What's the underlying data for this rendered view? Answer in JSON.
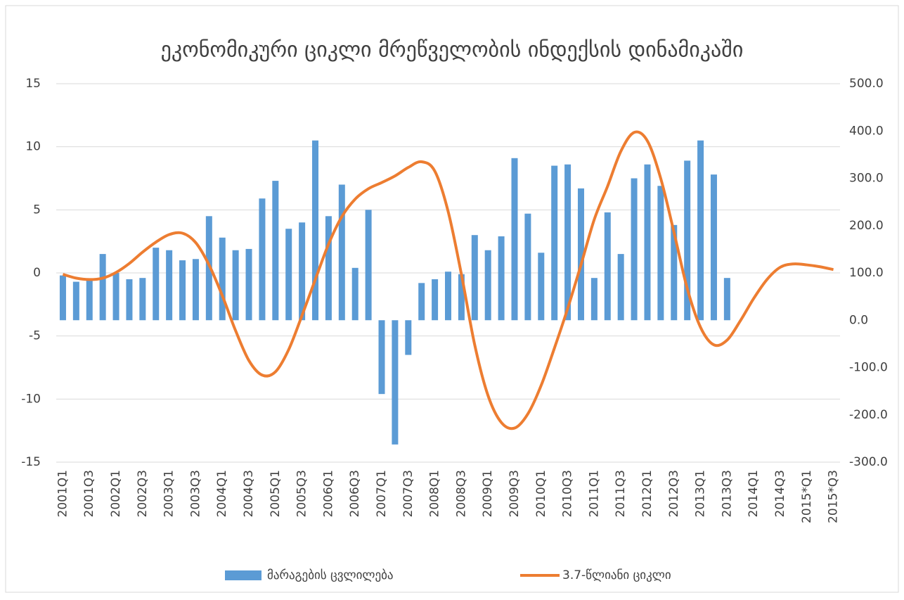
{
  "chart_data": {
    "type": "bar-line",
    "title": "ეკონომიკური ციკლი მრეწველობის ინდექსის დინამიკაში",
    "categories": [
      "2001Q1",
      null,
      "2001Q3",
      null,
      "2002Q1",
      null,
      "2002Q3",
      null,
      "2003Q1",
      null,
      "2003Q3",
      null,
      "2004Q1",
      null,
      "2004Q3",
      null,
      "2005Q1",
      null,
      "2005Q3",
      null,
      "2006Q1",
      null,
      "2006Q3",
      null,
      "2007Q1",
      null,
      "2007Q3",
      null,
      "2008Q1",
      null,
      "2008Q3",
      null,
      "2009Q1",
      null,
      "2009Q3",
      null,
      "2010Q1",
      null,
      "2010Q3",
      null,
      "2011Q1",
      null,
      "2011Q3",
      null,
      "2012Q1",
      null,
      "2012Q3",
      null,
      "2013Q1",
      null,
      "2013Q3",
      null,
      "2014Q1",
      null,
      "2014Q3",
      null,
      "2015*Q1",
      null,
      "2015*Q3"
    ],
    "series": [
      {
        "name": "მარაგების ცვლილება",
        "type": "bar",
        "color": "#5b9bd5",
        "values": [
          -0.2,
          -0.7,
          -0.6,
          1.5,
          0,
          -0.5,
          -0.4,
          2.0,
          1.8,
          1.0,
          1.1,
          4.5,
          2.8,
          1.8,
          1.9,
          5.9,
          7.3,
          3.5,
          4.0,
          10.5,
          4.5,
          7.0,
          0.4,
          5.0,
          -9.6,
          -13.6,
          -6.5,
          -0.8,
          -0.5,
          0.1,
          -0.1,
          3.0,
          1.8,
          2.9,
          9.1,
          4.7,
          1.6,
          8.5,
          8.6,
          6.7,
          -0.4,
          4.8,
          1.5,
          7.5,
          8.6,
          6.9,
          3.8,
          8.9,
          10.5,
          7.8,
          -0.4,
          null,
          null,
          null,
          null,
          null,
          null,
          null,
          null
        ]
      },
      {
        "name": "3.7-წლიანი ციკლი",
        "type": "line",
        "axis": "y2",
        "color": "#ed7d31",
        "values": [
          97,
          89,
          86,
          89,
          101,
          120,
          144,
          165,
          181,
          184,
          164,
          117,
          52,
          -22,
          -85,
          -116,
          -109,
          -62,
          10,
          86,
          161,
          219,
          256,
          278,
          291,
          305,
          323,
          335,
          315,
          230,
          97,
          -52,
          -159,
          -216,
          -228,
          -198,
          -138,
          -59,
          25,
          117,
          213,
          283,
          357,
          397,
          379,
          300,
          186,
          67,
          -15,
          -52,
          -42,
          -1,
          46,
          86,
          112,
          119,
          117,
          113,
          107
        ]
      }
    ],
    "ylim": [
      -15,
      15
    ],
    "yticks": [
      -15,
      -10,
      -5,
      0,
      5,
      10,
      15
    ],
    "y2lim": [
      -300,
      500
    ],
    "y2ticks": [
      {
        "value": -300,
        "label": "-300.0"
      },
      {
        "value": -200,
        "label": "-200.0"
      },
      {
        "value": -100,
        "label": "-100.0"
      },
      {
        "value": 0,
        "label": "0.0"
      },
      {
        "value": 100,
        "label": "100.0"
      },
      {
        "value": 200,
        "label": "200.0"
      },
      {
        "value": 300,
        "label": "300.0"
      },
      {
        "value": 400,
        "label": "400.0"
      },
      {
        "value": 500,
        "label": "500.0"
      }
    ],
    "grid": true,
    "legend": "bottom"
  }
}
